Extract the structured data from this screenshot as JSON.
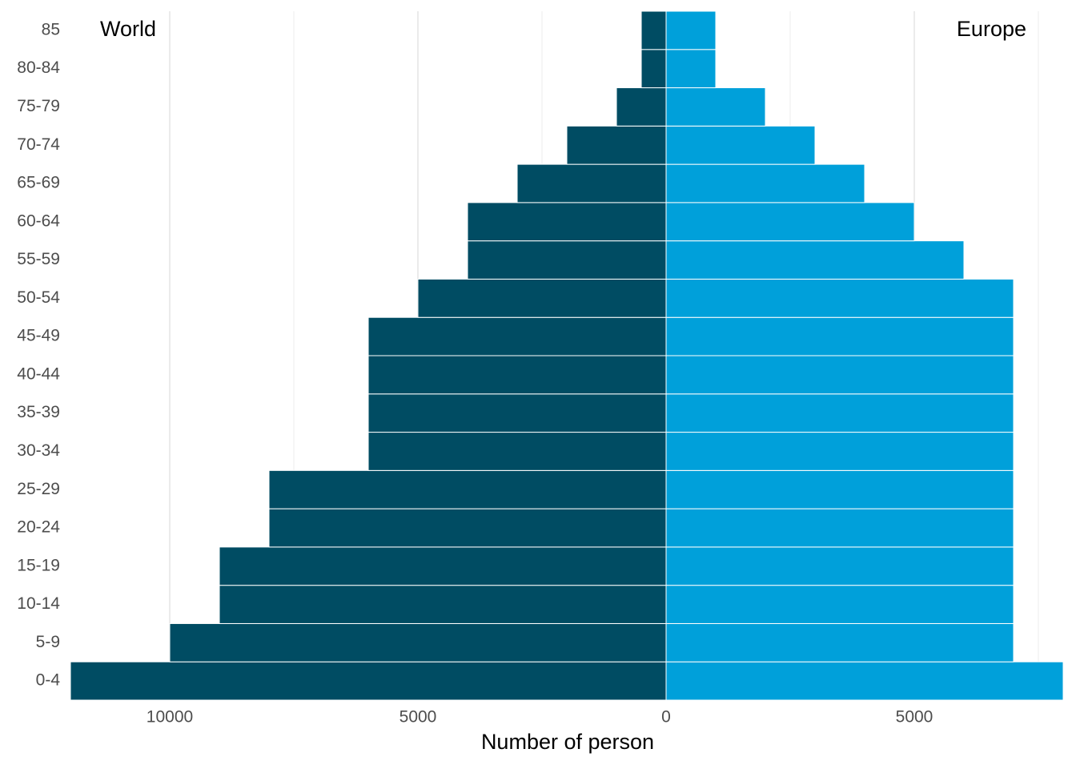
{
  "chart_data": {
    "type": "pyramid",
    "categories": [
      "0-4",
      "5-9",
      "10-14",
      "15-19",
      "20-24",
      "25-29",
      "30-34",
      "35-39",
      "40-44",
      "45-49",
      "50-54",
      "55-59",
      "60-64",
      "65-69",
      "70-74",
      "75-79",
      "80-84",
      "85"
    ],
    "series": [
      {
        "name": "World",
        "color": "#004c63",
        "side": "left",
        "values": [
          12000,
          10000,
          9000,
          9000,
          8000,
          8000,
          6000,
          6000,
          6000,
          6000,
          5000,
          4000,
          4000,
          3000,
          2000,
          1000,
          500,
          500
        ]
      },
      {
        "name": "Europe",
        "color": "#00a0da",
        "side": "right",
        "values": [
          8000,
          7000,
          7000,
          7000,
          7000,
          7000,
          7000,
          7000,
          7000,
          7000,
          7000,
          6000,
          5000,
          4000,
          3000,
          2000,
          1000,
          1000
        ]
      }
    ],
    "xlabel": "Number of person",
    "xlim": [
      -12000,
      8000
    ],
    "xticks": [
      {
        "value": -10000,
        "label": "10000"
      },
      {
        "value": -5000,
        "label": "5000"
      },
      0,
      5000
    ],
    "minor_xticks": [
      -7500,
      -2500,
      2500,
      7500
    ],
    "grid": true
  }
}
